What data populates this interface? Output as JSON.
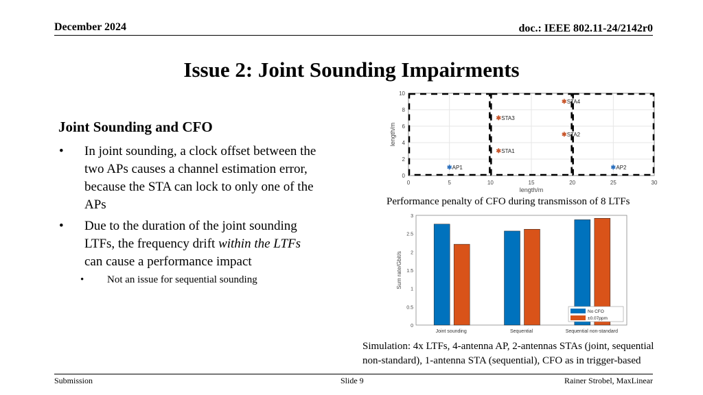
{
  "header": {
    "date": "December 2024",
    "doc": "doc.: IEEE 802.11-24/2142r0"
  },
  "slide": {
    "title": "Issue 2: Joint Sounding Impairments",
    "section_title": "Joint Sounding and CFO",
    "bullet1": "In joint sounding, a clock offset between the two APs causes a channel estimation error, because the STA can lock to only one of the APs",
    "bullet1_lines": [
      "In joint sounding, a clock offset between the",
      "two APs causes a channel estimation error,",
      "because the STA can lock to only one of the",
      "APs"
    ],
    "bullet2_a": "Due to the duration of the joint sounding",
    "bullet2_b": "LTFs, the frequency drift ",
    "bullet2_italic": "within the LTFs",
    "bullet2_c": "can cause a performance impact",
    "sub_bullet": "Not an issue for sequential sounding",
    "bullet_glyph": "•",
    "caption_top": "Performance penalty of CFO during transmisson of 8 LTFs",
    "caption_bottom_1": "Simulation: 4x LTFs, 4-antenna AP, 2-antennas STAs (joint, sequential",
    "caption_bottom_2": "non-standard), 1-antenna STA (sequential), CFO as in trigger-based"
  },
  "footer": {
    "left": "Submission",
    "center": "Slide 9",
    "right": "Rainer Strobel, MaxLinear"
  },
  "chart_data": [
    {
      "type": "scatter",
      "xlabel": "length/m",
      "ylabel": "length/m",
      "xlim": [
        0,
        30
      ],
      "ylim": [
        0,
        10
      ],
      "xticks": [
        0,
        5,
        10,
        15,
        20,
        25,
        30
      ],
      "yticks": [
        0,
        2,
        4,
        6,
        8,
        10
      ],
      "grid": true,
      "points": [
        {
          "label": "AP1",
          "x": 5,
          "y": 1,
          "color": "#2a6fbd"
        },
        {
          "label": "AP2",
          "x": 25,
          "y": 1,
          "color": "#2a6fbd"
        },
        {
          "label": "STA1",
          "x": 11,
          "y": 3,
          "color": "#c8552a"
        },
        {
          "label": "STA2",
          "x": 19,
          "y": 5,
          "color": "#c8552a"
        },
        {
          "label": "STA3",
          "x": 11,
          "y": 7,
          "color": "#c8552a"
        },
        {
          "label": "STA4",
          "x": 19,
          "y": 9,
          "color": "#c8552a"
        }
      ],
      "dashed_regions": [
        {
          "x": [
            0,
            10
          ],
          "y": [
            0,
            10
          ]
        },
        {
          "x": [
            10,
            20
          ],
          "y": [
            0,
            10
          ]
        },
        {
          "x": [
            20,
            30
          ],
          "y": [
            0,
            10
          ]
        }
      ]
    },
    {
      "type": "bar",
      "ylabel": "Sum rate/Gbit/s",
      "ylim": [
        0,
        3
      ],
      "yticks": [
        0,
        0.5,
        1,
        1.5,
        2,
        2.5,
        3
      ],
      "categories": [
        "Joint sounding",
        "Sequential",
        "Sequential non-standard"
      ],
      "series": [
        {
          "name": "No CFO",
          "color": "#0072bd",
          "values": [
            2.76,
            2.57,
            2.88
          ]
        },
        {
          "name": "±0.07ppm",
          "color": "#d95319",
          "values": [
            2.21,
            2.62,
            2.92
          ]
        }
      ],
      "legend": "bottom-right"
    }
  ]
}
